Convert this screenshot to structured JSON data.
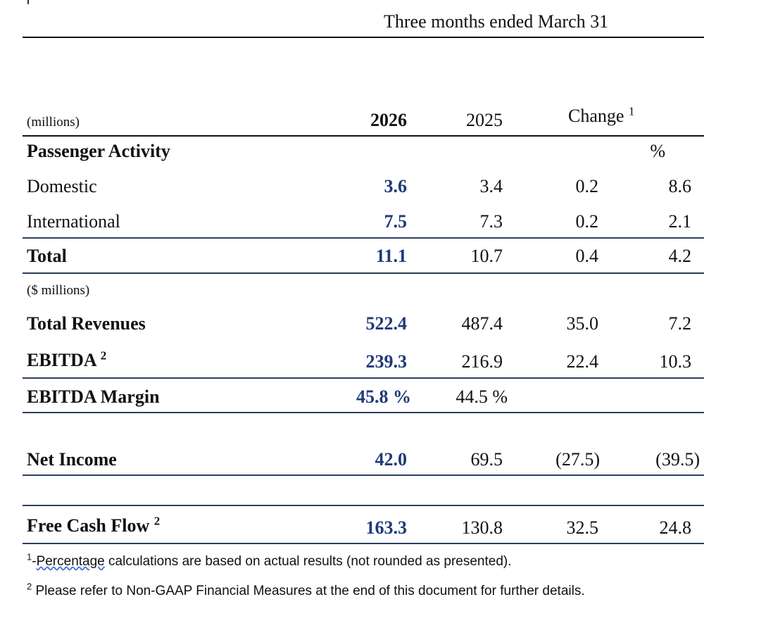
{
  "header": {
    "period": "Three months ended March 31",
    "units_top": "(millions)",
    "col_2026": "2026",
    "col_2025": "2025",
    "col_change": "Change",
    "change_footnote_ref": "1",
    "pct_symbol": "%"
  },
  "passenger": {
    "section_title": "Passenger Activity",
    "rows": [
      {
        "label": "Domestic",
        "v2026": "3.6",
        "v2025": "3.4",
        "change": "0.2",
        "pct": "8.6"
      },
      {
        "label": "International",
        "v2026": "7.5",
        "v2025": "7.3",
        "change": "0.2",
        "pct": "2.1"
      },
      {
        "label": "Total",
        "v2026": "11.1",
        "v2025": "10.7",
        "change": "0.4",
        "pct": "4.2"
      }
    ]
  },
  "financial": {
    "units": "($ millions)",
    "total_revenues": {
      "label": "Total Revenues",
      "v2026": "522.4",
      "v2025": "487.4",
      "change": "35.0",
      "pct": "7.2"
    },
    "ebitda": {
      "label": "EBITDA",
      "footnote_ref": "2",
      "v2026": "239.3",
      "v2025": "216.9",
      "change": "22.4",
      "pct": "10.3"
    },
    "ebitda_margin": {
      "label": "EBITDA Margin",
      "v2026": "45.8 %",
      "v2025": "44.5 %"
    },
    "net_income": {
      "label": "Net Income",
      "v2026": "42.0",
      "v2025": "69.5",
      "change": "(27.5)",
      "pct": "(39.5)"
    },
    "free_cash_flow": {
      "label": "Free Cash Flow",
      "footnote_ref": "2",
      "v2026": "163.3",
      "v2025": "130.8",
      "change": "32.5",
      "pct": "24.8"
    }
  },
  "footnotes": {
    "note1_marker": "1",
    "note1_dash": "-",
    "note1_word": "Percentage",
    "note1_rest": " calculations are based on actual results (not rounded as presented).",
    "note2_marker": "2",
    "note2_text": " Please refer to Non-GAAP Financial Measures at the end of this document for further details."
  },
  "colors": {
    "current_year": "#1f3a78",
    "rule_navy": "#2b3f5f",
    "rule_black": "#111111",
    "spell_underline": "#4d6fd8"
  }
}
